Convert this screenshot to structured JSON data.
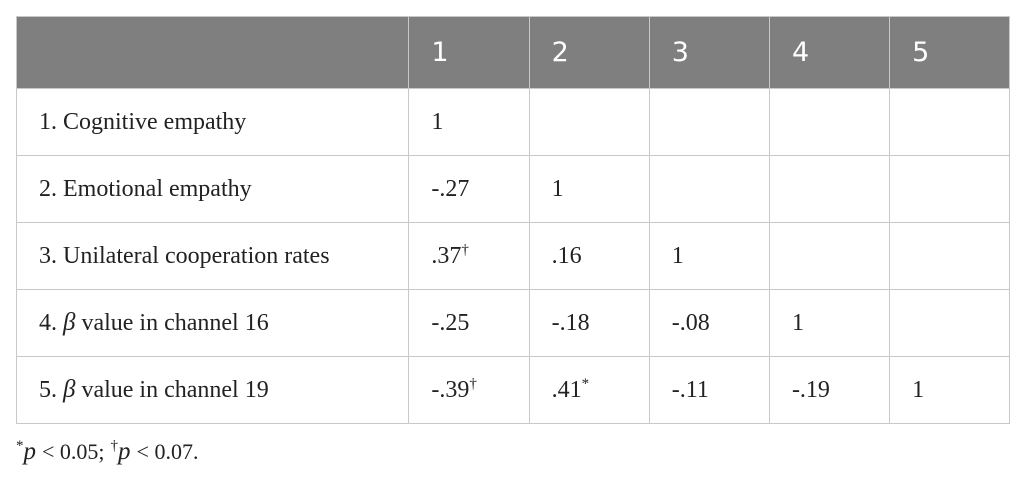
{
  "table": {
    "header": [
      "1",
      "2",
      "3",
      "4",
      "5"
    ],
    "rows": [
      {
        "label": {
          "text": "1. Cognitive empathy"
        },
        "cells": [
          {
            "value": "1"
          }
        ]
      },
      {
        "label": {
          "text": "2. Emotional empathy"
        },
        "cells": [
          {
            "value": "-.27"
          },
          {
            "value": "1"
          }
        ]
      },
      {
        "label": {
          "text": "3. Unilateral cooperation rates"
        },
        "cells": [
          {
            "value": ".37",
            "mark": "†"
          },
          {
            "value": ".16"
          },
          {
            "value": "1"
          }
        ]
      },
      {
        "label": {
          "number": "4.",
          "symbol": "β",
          "text": "value in channel 16"
        },
        "cells": [
          {
            "value": "-.25"
          },
          {
            "value": "-.18"
          },
          {
            "value": "-.08"
          },
          {
            "value": "1"
          }
        ]
      },
      {
        "label": {
          "number": "5.",
          "symbol": "β",
          "text": "value in channel 19"
        },
        "cells": [
          {
            "value": "-.39",
            "mark": "†"
          },
          {
            "value": ".41",
            "mark": "*"
          },
          {
            "value": "-.11"
          },
          {
            "value": "-.19"
          },
          {
            "value": "1"
          }
        ]
      }
    ]
  },
  "footnote": [
    {
      "mark": "*",
      "symbol": "p",
      "text": "< 0.05;"
    },
    {
      "mark": "†",
      "symbol": "p",
      "text": "< 0.07."
    }
  ]
}
